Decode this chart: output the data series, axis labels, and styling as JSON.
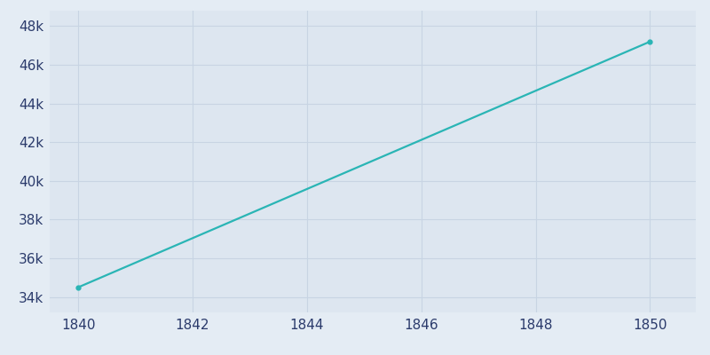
{
  "x": [
    1840,
    1850
  ],
  "y": [
    34500,
    47200
  ],
  "line_color": "#2ab5b5",
  "line_width": 1.6,
  "background_color": "#e4ecf4",
  "axes_facecolor": "#dde6f0",
  "grid_color": "#c8d4e3",
  "tick_label_color": "#2a3a6b",
  "xlim": [
    1839.5,
    1850.8
  ],
  "ylim": [
    33200,
    48800
  ],
  "xticks": [
    1840,
    1842,
    1844,
    1846,
    1848,
    1850
  ],
  "yticks": [
    34000,
    36000,
    38000,
    40000,
    42000,
    44000,
    46000,
    48000
  ],
  "marker": "o",
  "marker_size": 3.5,
  "tick_fontsize": 11
}
